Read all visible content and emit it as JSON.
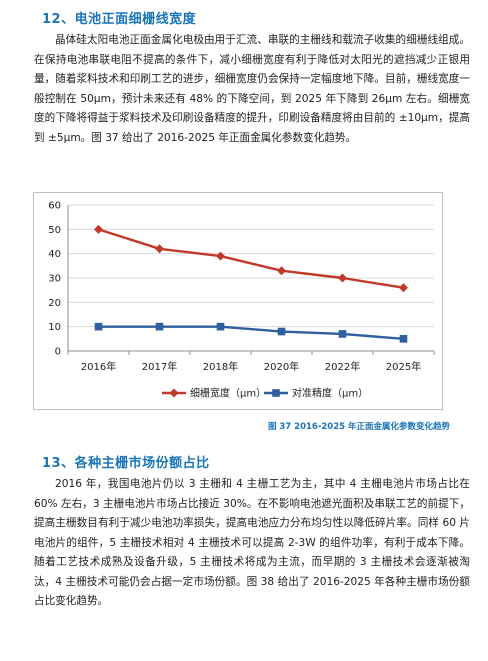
{
  "section12": {
    "title": "12、电池正面细栅线宽度",
    "paragraph": "晶体硅太阳电池正面金属化电极由用于汇流、串联的主栅线和载流子收集的细栅线组成。在保持电池串联电阻不提高的条件下，减小细栅宽度有利于降低对太阳光的遮挡减少正银用量，随着浆料技术和印刷工艺的进步，细栅宽度仍会保持一定幅度地下降。目前，栅线宽度一般控制在 50μm，预计未来还有 48% 的下降空间，到 2025 年下降到 26μm 左右。细栅宽度的下降将得益于浆料技术及印刷设备精度的提升，印刷设备精度将由目前的 ±10μm，提高到 ±5μm。图 37 给出了 2016-2025 年正面金属化参数变化趋势。"
  },
  "chart_data": {
    "type": "line",
    "categories": [
      "2016年",
      "2017年",
      "2018年",
      "2020年",
      "2022年",
      "2025年"
    ],
    "series": [
      {
        "name": "细栅宽度（μm）",
        "values": [
          50,
          42,
          39,
          33,
          30,
          26
        ],
        "color": "#c0392b",
        "marker": "diamond"
      },
      {
        "name": "对准精度（μm）",
        "values": [
          10,
          10,
          10,
          8,
          7,
          5
        ],
        "color": "#2e5f9e",
        "marker": "square"
      }
    ],
    "yticks": [
      "0",
      "10",
      "20",
      "30",
      "40",
      "50",
      "60"
    ],
    "ylim": [
      0,
      60
    ],
    "grid": true,
    "legend_position": "bottom"
  },
  "figure_caption": "图 37 2016-2025 年正面金属化参数变化趋势",
  "section13": {
    "title": "13、各种主栅市场份额占比",
    "paragraph": "2016 年，我国电池片仍以 3 主栅和 4 主栅工艺为主，其中 4 主栅电池片市场占比在 60% 左右，3 主栅电池片市场占比接近 30%。在不影响电池遮光面积及串联工艺的前提下，提高主栅数目有利于减少电池功率损失，提高电池应力分布均匀性以降低碎片率。同样 60 片电池片的组件，5 主栅技术相对 4 主栅技术可以提高 2-3W 的组件功率，有利于成本下降。随着工艺技术成熟及设备升级，5 主栅技术将成为主流，而早期的 3 主栅技术会逐渐被淘汰，4 主栅技术可能仍会占据一定市场份额。图 38 给出了 2016-2025 年各种主栅市场份额占比变化趋势。"
  }
}
